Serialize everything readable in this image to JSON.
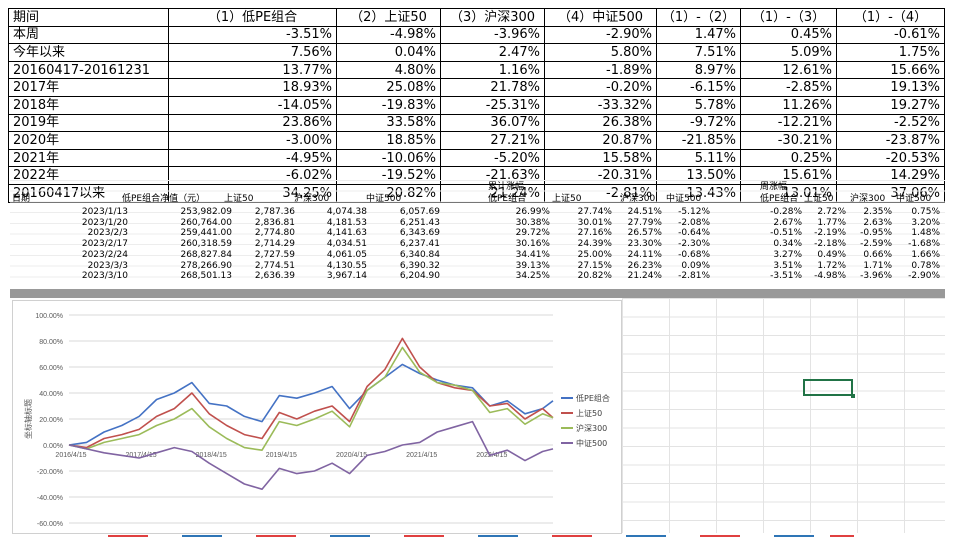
{
  "perf_table": {
    "headers": [
      "期间",
      "（1）低PE组合",
      "（2）上证50",
      "（3）沪深300",
      "（4）中证500",
      "（1）-（2）",
      "（1）-（3）",
      "（1）-（4）"
    ],
    "rows": [
      {
        "period": "本周",
        "v": [
          "-3.51%",
          "-4.98%",
          "-3.96%",
          "-2.90%",
          "1.47%",
          "0.45%",
          "-0.61%"
        ]
      },
      {
        "period": "今年以来",
        "v": [
          "7.56%",
          "0.04%",
          "2.47%",
          "5.80%",
          "7.51%",
          "5.09%",
          "1.75%"
        ]
      },
      {
        "period": "20160417-20161231",
        "v": [
          "13.77%",
          "4.80%",
          "1.16%",
          "-1.89%",
          "8.97%",
          "12.61%",
          "15.66%"
        ]
      },
      {
        "period": "2017年",
        "v": [
          "18.93%",
          "25.08%",
          "21.78%",
          "-0.20%",
          "-6.15%",
          "-2.85%",
          "19.13%"
        ]
      },
      {
        "period": "2018年",
        "v": [
          "-14.05%",
          "-19.83%",
          "-25.31%",
          "-33.32%",
          "5.78%",
          "11.26%",
          "19.27%"
        ]
      },
      {
        "period": "2019年",
        "v": [
          "23.86%",
          "33.58%",
          "36.07%",
          "26.38%",
          "-9.72%",
          "-12.21%",
          "-2.52%"
        ]
      },
      {
        "period": "2020年",
        "v": [
          "-3.00%",
          "18.85%",
          "27.21%",
          "20.87%",
          "-21.85%",
          "-30.21%",
          "-23.87%"
        ]
      },
      {
        "period": "2021年",
        "v": [
          "-4.95%",
          "-10.06%",
          "-5.20%",
          "15.58%",
          "5.11%",
          "0.25%",
          "-20.53%"
        ]
      },
      {
        "period": "2022年",
        "v": [
          "-6.02%",
          "-19.52%",
          "-21.63%",
          "-20.31%",
          "13.50%",
          "15.61%",
          "14.29%"
        ]
      },
      {
        "period": "20160417以来",
        "v": [
          "34.25%",
          "20.82%",
          "21.24%",
          "-2.81%",
          "13.43%",
          "13.01%",
          "37.06%"
        ]
      }
    ]
  },
  "daily_table": {
    "group_cumulative": "累计涨幅",
    "group_weekly": "周涨幅",
    "headers": [
      "日期",
      "低PE组合净值（元）",
      "上证50",
      "沪深300",
      "中证500",
      "低PE组合",
      "上证50",
      "沪深300",
      "中证500",
      "低PE组合",
      "上证50",
      "沪深300",
      "中证500"
    ],
    "rows": [
      [
        "2023/1/13",
        "253,982.09",
        "2,787.36",
        "4,074.38",
        "6,057.69",
        "26.99%",
        "27.74%",
        "24.51%",
        "-5.12%",
        "-0.28%",
        "2.72%",
        "2.35%",
        "0.75%"
      ],
      [
        "2023/1/20",
        "260,764.00",
        "2,836.81",
        "4,181.53",
        "6,251.43",
        "30.38%",
        "30.01%",
        "27.79%",
        "-2.08%",
        "2.67%",
        "1.77%",
        "2.63%",
        "3.20%"
      ],
      [
        "2023/2/3",
        "259,441.00",
        "2,774.80",
        "4,141.63",
        "6,343.69",
        "29.72%",
        "27.16%",
        "26.57%",
        "-0.64%",
        "-0.51%",
        "-2.19%",
        "-0.95%",
        "1.48%"
      ],
      [
        "2023/2/17",
        "260,318.59",
        "2,714.29",
        "4,034.51",
        "6,237.41",
        "30.16%",
        "24.39%",
        "23.30%",
        "-2.30%",
        "0.34%",
        "-2.18%",
        "-2.59%",
        "-1.68%"
      ],
      [
        "2023/2/24",
        "268,827.84",
        "2,727.59",
        "4,061.05",
        "6,340.84",
        "34.41%",
        "25.00%",
        "24.11%",
        "-0.68%",
        "3.27%",
        "0.49%",
        "0.66%",
        "1.66%"
      ],
      [
        "2023/3/3",
        "278,266.90",
        "2,774.51",
        "4,130.55",
        "6,390.32",
        "39.13%",
        "27.15%",
        "26.23%",
        "0.09%",
        "3.51%",
        "1.72%",
        "1.71%",
        "0.78%"
      ],
      [
        "2023/3/10",
        "268,501.13",
        "2,636.39",
        "3,967.14",
        "6,204.90",
        "34.25%",
        "20.82%",
        "21.24%",
        "-2.81%",
        "-3.51%",
        "-4.98%",
        "-3.96%",
        "-2.90%"
      ]
    ]
  },
  "chart_data": {
    "type": "line",
    "title": "",
    "ylabel": "坐标轴标题",
    "xlabel": "",
    "ylim": [
      -60,
      100
    ],
    "yticks": [
      "100.00%",
      "80.00%",
      "60.00%",
      "40.00%",
      "20.00%",
      "0.00%",
      "-20.00%",
      "-40.00%",
      "-60.00%"
    ],
    "xticks": [
      "2016/4/15",
      "2017/4/15",
      "2018/4/15",
      "2019/4/15",
      "2020/4/15",
      "2021/4/15",
      "2022/4/15"
    ],
    "legend_position": "right",
    "series": [
      {
        "name": "低PE组合",
        "color": "#4472C4",
        "x": [
          "2016/4/15",
          "2016/7/15",
          "2016/10/15",
          "2017/1/15",
          "2017/4/15",
          "2017/7/15",
          "2017/10/15",
          "2018/1/15",
          "2018/4/15",
          "2018/7/15",
          "2018/10/15",
          "2019/1/15",
          "2019/4/15",
          "2019/7/15",
          "2019/10/15",
          "2020/1/15",
          "2020/4/15",
          "2020/7/15",
          "2020/10/15",
          "2021/1/15",
          "2021/4/15",
          "2021/7/15",
          "2021/10/15",
          "2022/1/15",
          "2022/4/15",
          "2022/7/15",
          "2022/10/15",
          "2023/1/15",
          "2023/3/10"
        ],
        "values": [
          0,
          2,
          10,
          15,
          22,
          35,
          40,
          48,
          32,
          30,
          22,
          18,
          38,
          36,
          40,
          45,
          28,
          42,
          52,
          62,
          55,
          50,
          46,
          44,
          30,
          34,
          24,
          28,
          34
        ]
      },
      {
        "name": "上证50",
        "color": "#C0504D",
        "x": [
          "2016/4/15",
          "2016/7/15",
          "2016/10/15",
          "2017/1/15",
          "2017/4/15",
          "2017/7/15",
          "2017/10/15",
          "2018/1/15",
          "2018/4/15",
          "2018/7/15",
          "2018/10/15",
          "2019/1/15",
          "2019/4/15",
          "2019/7/15",
          "2019/10/15",
          "2020/1/15",
          "2020/4/15",
          "2020/7/15",
          "2020/10/15",
          "2021/1/15",
          "2021/4/15",
          "2021/7/15",
          "2021/10/15",
          "2022/1/15",
          "2022/4/15",
          "2022/7/15",
          "2022/10/15",
          "2023/1/15",
          "2023/3/10"
        ],
        "values": [
          0,
          -2,
          5,
          8,
          12,
          22,
          28,
          40,
          24,
          15,
          8,
          5,
          25,
          20,
          26,
          30,
          18,
          45,
          58,
          82,
          60,
          48,
          44,
          42,
          30,
          32,
          20,
          28,
          21
        ]
      },
      {
        "name": "沪深300",
        "color": "#9BBB59",
        "x": [
          "2016/4/15",
          "2016/7/15",
          "2016/10/15",
          "2017/1/15",
          "2017/4/15",
          "2017/7/15",
          "2017/10/15",
          "2018/1/15",
          "2018/4/15",
          "2018/7/15",
          "2018/10/15",
          "2019/1/15",
          "2019/4/15",
          "2019/7/15",
          "2019/10/15",
          "2020/1/15",
          "2020/4/15",
          "2020/7/15",
          "2020/10/15",
          "2021/1/15",
          "2021/4/15",
          "2021/7/15",
          "2021/10/15",
          "2022/1/15",
          "2022/4/15",
          "2022/7/15",
          "2022/10/15",
          "2023/1/15",
          "2023/3/10"
        ],
        "values": [
          0,
          -3,
          2,
          5,
          8,
          15,
          20,
          28,
          14,
          5,
          -2,
          -4,
          18,
          15,
          20,
          26,
          14,
          42,
          52,
          75,
          56,
          48,
          46,
          42,
          25,
          28,
          16,
          24,
          21
        ]
      },
      {
        "name": "中证500",
        "color": "#8064A2",
        "x": [
          "2016/4/15",
          "2016/7/15",
          "2016/10/15",
          "2017/1/15",
          "2017/4/15",
          "2017/7/15",
          "2017/10/15",
          "2018/1/15",
          "2018/4/15",
          "2018/7/15",
          "2018/10/15",
          "2019/1/15",
          "2019/4/15",
          "2019/7/15",
          "2019/10/15",
          "2020/1/15",
          "2020/4/15",
          "2020/7/15",
          "2020/10/15",
          "2021/1/15",
          "2021/4/15",
          "2021/7/15",
          "2021/10/15",
          "2022/1/15",
          "2022/4/15",
          "2022/7/15",
          "2022/10/15",
          "2023/1/15",
          "2023/3/10"
        ],
        "values": [
          0,
          -3,
          -6,
          -8,
          -10,
          -6,
          -2,
          -5,
          -14,
          -22,
          -30,
          -34,
          -18,
          -22,
          -20,
          -14,
          -22,
          -8,
          -5,
          0,
          2,
          10,
          14,
          18,
          -8,
          -4,
          -12,
          -5,
          -3
        ]
      }
    ]
  },
  "colors": {
    "sheet_grid": "#ededed",
    "selection": "#217346",
    "separator": "#999999"
  }
}
